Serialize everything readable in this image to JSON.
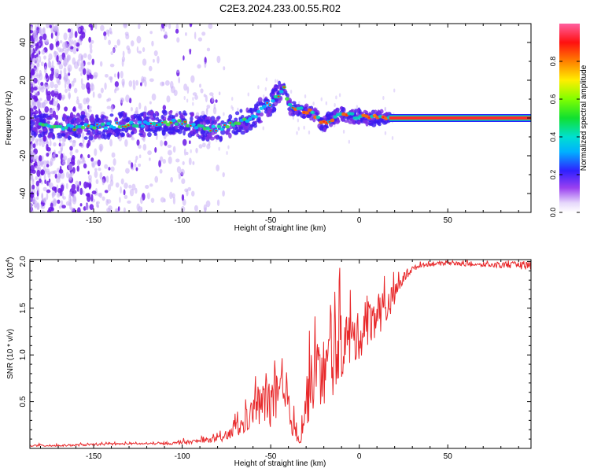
{
  "title": "C2E3.2024.233.00.55.R02",
  "colors": {
    "snr_line": "#e8282a",
    "ridge_line": "#e8285a",
    "scatter_purple": "#7a20e0",
    "axis": "#000000"
  },
  "chart_data": [
    {
      "type": "heatmap",
      "xlabel": "Height of straight line (km)",
      "ylabel": "Frequency (Hz)",
      "xlim": [
        -186,
        97
      ],
      "ylim": [
        -50,
        50
      ],
      "xticks": [
        -150,
        -100,
        -50,
        0,
        50
      ],
      "yticks": [
        -40,
        -20,
        0,
        20,
        40
      ],
      "colorbar": {
        "label": "Normalized spectral amplitude",
        "range": [
          0,
          1
        ],
        "ticks": [
          0.0,
          0.2,
          0.4,
          0.6,
          0.8
        ],
        "colormap": [
          "#ffffff",
          "#d8c8f8",
          "#8a2be2",
          "#2020ff",
          "#00c8ff",
          "#00e060",
          "#20ff00",
          "#ffff00",
          "#ff8000",
          "#ff0000",
          "#ff60a0"
        ]
      },
      "ridge": [
        {
          "x": -185,
          "y": -4
        },
        {
          "x": -160,
          "y": -5
        },
        {
          "x": -140,
          "y": -4
        },
        {
          "x": -120,
          "y": -3
        },
        {
          "x": -100,
          "y": -2
        },
        {
          "x": -90,
          "y": -5
        },
        {
          "x": -80,
          "y": -6
        },
        {
          "x": -70,
          "y": -3
        },
        {
          "x": -60,
          "y": 0
        },
        {
          "x": -55,
          "y": 5
        },
        {
          "x": -50,
          "y": 8
        },
        {
          "x": -46,
          "y": 12
        },
        {
          "x": -42,
          "y": 17
        },
        {
          "x": -40,
          "y": 6
        },
        {
          "x": -35,
          "y": 5
        },
        {
          "x": -28,
          "y": 3
        },
        {
          "x": -20,
          "y": -3
        },
        {
          "x": -15,
          "y": 0
        },
        {
          "x": -10,
          "y": 2
        },
        {
          "x": -5,
          "y": 1
        },
        {
          "x": 0,
          "y": 1
        },
        {
          "x": 5,
          "y": 0
        },
        {
          "x": 10,
          "y": 0
        },
        {
          "x": 17,
          "y": 0
        },
        {
          "x": 97,
          "y": 0
        }
      ],
      "tone": {
        "x_start": 17,
        "x_end": 97,
        "y": 0
      }
    },
    {
      "type": "line",
      "xlabel": "Height of straight line (km)",
      "ylabel": "SNR (10 * v/v)",
      "ymultiplier": "(x10",
      "ymultiplier_exp": "4",
      "ymultiplier_close": ")",
      "xlim": [
        -186,
        97
      ],
      "ylim": [
        0,
        2.02
      ],
      "xticks": [
        -150,
        -100,
        -50,
        0,
        50
      ],
      "yticks": [
        0.5,
        1.0,
        1.5,
        2.0
      ],
      "ytick_labels": [
        "0.5",
        "1.0",
        "1.5",
        "2.0"
      ],
      "series": [
        {
          "x": [
            -186,
            -170,
            -150,
            -130,
            -110,
            -100,
            -90,
            -80,
            -75,
            -70,
            -65,
            -60,
            -55,
            -50,
            -45,
            -40,
            -35,
            -33,
            -30,
            -25,
            -20,
            -15,
            -10,
            -5,
            0,
            5,
            10,
            15,
            20,
            25,
            30,
            35,
            40,
            50,
            60,
            70,
            80,
            97
          ],
          "y": [
            0.03,
            0.03,
            0.04,
            0.05,
            0.05,
            0.06,
            0.08,
            0.1,
            0.12,
            0.2,
            0.25,
            0.4,
            0.45,
            0.5,
            0.55,
            0.4,
            0.1,
            0.1,
            0.5,
            0.8,
            0.8,
            0.95,
            1.1,
            1.15,
            1.2,
            1.35,
            1.45,
            1.5,
            1.65,
            1.82,
            1.92,
            1.96,
            1.97,
            1.98,
            1.97,
            1.96,
            1.96,
            1.96
          ],
          "noise": [
            0.01,
            0.01,
            0.01,
            0.01,
            0.01,
            0.02,
            0.02,
            0.03,
            0.05,
            0.08,
            0.12,
            0.15,
            0.25,
            0.3,
            0.25,
            0.2,
            0.05,
            0.05,
            0.3,
            0.35,
            0.4,
            0.4,
            0.35,
            0.3,
            0.25,
            0.25,
            0.25,
            0.2,
            0.1,
            0.06,
            0.03,
            0.02,
            0.02,
            0.02,
            0.02,
            0.02,
            0.03,
            0.05
          ]
        }
      ]
    }
  ]
}
